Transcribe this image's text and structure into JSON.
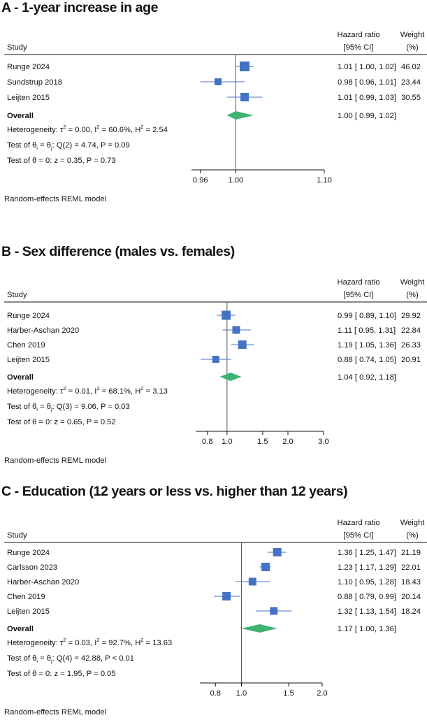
{
  "colors": {
    "marker": "#4472c4",
    "overall": "#3cb371",
    "line": "#555555",
    "axis": "#111111"
  },
  "chart_data": [
    {
      "type": "forest",
      "title": "A - 1-year increase in age",
      "columns": {
        "study": "Study",
        "hr_line1": "Hazard ratio",
        "hr_line2": "[95% CI]",
        "weight_line1": "Weight",
        "weight_line2": "(%)"
      },
      "studies": [
        {
          "name": "Runge 2024",
          "hr": 1.01,
          "lo": 1.0,
          "hi": 1.02,
          "ci_text": "1.01 [ 1.00, 1.02]",
          "weight": "46.02"
        },
        {
          "name": "Sundstrup 2018",
          "hr": 0.98,
          "lo": 0.96,
          "hi": 1.01,
          "ci_text": "0.98 [ 0.96, 1.01]",
          "weight": "23.44"
        },
        {
          "name": "Leijten 2015",
          "hr": 1.01,
          "lo": 0.99,
          "hi": 1.03,
          "ci_text": "1.01 [ 0.99, 1.03]",
          "weight": "30.55"
        }
      ],
      "overall": {
        "label": "Overall",
        "hr": 1.0,
        "lo": 0.99,
        "hi": 1.02,
        "ci_text": "1.00 [ 0.99, 1.02]"
      },
      "heterogeneity": {
        "prefix": "Heterogeneity: ",
        "tau_sym": "τ",
        "tau2_rest": " = 0.00, I",
        "i2_rest": " = 60.6%, H",
        "h2_rest": " = 2.54",
        "sup": "2"
      },
      "test_q": {
        "pre": "Test of θ",
        "sub": "i",
        "mid": " = θ",
        "sub2": "j",
        "rest": ": Q(2) = 4.74, P = 0.09"
      },
      "test_z": "Test of θ = 0: z = 0.35, P = 0.73",
      "axis": {
        "min": 0.95,
        "max": 1.1,
        "ref": 1.0,
        "ticks": [
          0.96,
          1.0,
          1.1
        ],
        "tick_labels": [
          "0.96",
          "1.00",
          "1.10"
        ],
        "scale": "linear"
      },
      "model": "Random-effects REML model"
    },
    {
      "type": "forest",
      "title": "B - Sex difference (males vs. females)",
      "columns": {
        "study": "Study",
        "hr_line1": "Hazard ratio",
        "hr_line2": "[95% CI]",
        "weight_line1": "Weight",
        "weight_line2": "(%)"
      },
      "studies": [
        {
          "name": "Runge 2024",
          "hr": 0.99,
          "lo": 0.89,
          "hi": 1.1,
          "ci_text": "0.99 [ 0.89, 1.10]",
          "weight": "29.92"
        },
        {
          "name": "Harber-Aschan 2020",
          "hr": 1.11,
          "lo": 0.95,
          "hi": 1.31,
          "ci_text": "1.11 [ 0.95, 1.31]",
          "weight": "22.84"
        },
        {
          "name": "Chen 2019",
          "hr": 1.19,
          "lo": 1.05,
          "hi": 1.36,
          "ci_text": "1.19 [ 1.05, 1.36]",
          "weight": "26.33"
        },
        {
          "name": "Leijten 2015",
          "hr": 0.88,
          "lo": 0.74,
          "hi": 1.05,
          "ci_text": "0.88 [ 0.74, 1.05]",
          "weight": "20.91"
        }
      ],
      "overall": {
        "label": "Overall",
        "hr": 1.04,
        "lo": 0.92,
        "hi": 1.18,
        "ci_text": "1.04 [ 0.92, 1.18]"
      },
      "heterogeneity": {
        "prefix": "Heterogeneity: ",
        "tau_sym": "τ",
        "tau2_rest": " = 0.01, I",
        "i2_rest": " = 68.1%, H",
        "h2_rest": " = 3.13",
        "sup": "2"
      },
      "test_q": {
        "pre": "Test of θ",
        "sub": "i",
        "mid": " = θ",
        "sub2": "j",
        "rest": ": Q(3) = 9.06, P = 0.03"
      },
      "test_z": "Test of θ = 0: z = 0.65, P = 0.52",
      "axis": {
        "min": 0.7,
        "max": 3.0,
        "ref": 1.0,
        "ticks": [
          0.8,
          1.0,
          1.5,
          2.0,
          3.0
        ],
        "tick_labels": [
          "0.8",
          "1.0",
          "1.5",
          "2.0",
          "3.0"
        ],
        "scale": "log"
      },
      "model": "Random-effects REML model"
    },
    {
      "type": "forest",
      "title": "C - Education (12 years or less vs. higher than 12 years)",
      "columns": {
        "study": "Study",
        "hr_line1": "Hazard ratio",
        "hr_line2": "[95% CI]",
        "weight_line1": "Weight",
        "weight_line2": "(%)"
      },
      "studies": [
        {
          "name": "Runge 2024",
          "hr": 1.36,
          "lo": 1.25,
          "hi": 1.47,
          "ci_text": "1.36 [ 1.25, 1.47]",
          "weight": "21.19"
        },
        {
          "name": "Carlsson 2023",
          "hr": 1.23,
          "lo": 1.17,
          "hi": 1.29,
          "ci_text": "1.23 [ 1.17, 1.29]",
          "weight": "22.01"
        },
        {
          "name": "Harber-Aschan 2020",
          "hr": 1.1,
          "lo": 0.95,
          "hi": 1.28,
          "ci_text": "1.10 [ 0.95, 1.28]",
          "weight": "18.43"
        },
        {
          "name": "Chen 2019",
          "hr": 0.88,
          "lo": 0.79,
          "hi": 0.99,
          "ci_text": "0.88 [ 0.79, 0.99]",
          "weight": "20.14"
        },
        {
          "name": "Leijten 2015",
          "hr": 1.32,
          "lo": 1.13,
          "hi": 1.54,
          "ci_text": "1.32 [ 1.13, 1.54]",
          "weight": "18.24"
        }
      ],
      "overall": {
        "label": "Overall",
        "hr": 1.17,
        "lo": 1.0,
        "hi": 1.36,
        "ci_text": "1.17 [ 1.00, 1.36]"
      },
      "heterogeneity": {
        "prefix": "Heterogeneity: ",
        "tau_sym": "τ",
        "tau2_rest": " = 0.03, I",
        "i2_rest": " = 92.7%, H",
        "h2_rest": " = 13.63",
        "sup": "2"
      },
      "test_q": {
        "pre": "Test of θ",
        "sub": "i",
        "mid": " = θ",
        "sub2": "j",
        "rest": ": Q(4) = 42.88, P < 0.01"
      },
      "test_z": "Test of θ = 0: z = 1.95, P = 0.05",
      "axis": {
        "min": 0.7,
        "max": 2.0,
        "ref": 1.0,
        "ticks": [
          0.8,
          1.0,
          1.5,
          2.0
        ],
        "tick_labels": [
          "0.8",
          "1.0",
          "1.5",
          "2.0"
        ],
        "scale": "log"
      },
      "model": "Random-effects REML model"
    }
  ]
}
